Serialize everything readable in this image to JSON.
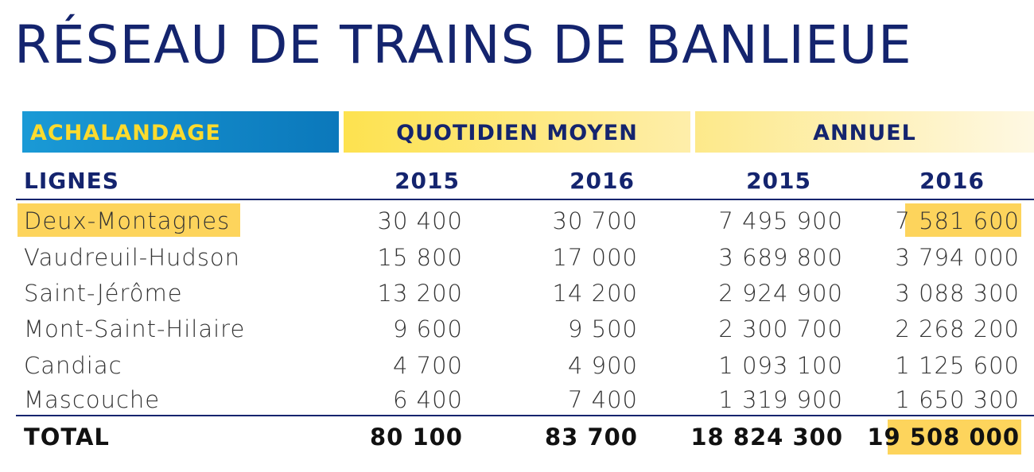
{
  "title": "RÉSEAU DE TRAINS DE BANLIEUE",
  "bands": {
    "achalandage": "ACHALANDAGE",
    "quotidien": "QUOTIDIEN MOYEN",
    "annuel": "ANNUEL"
  },
  "header": {
    "lignes": "LIGNES",
    "y1": "2015",
    "y2": "2016",
    "y3": "2015",
    "y4": "2016"
  },
  "rows": [
    {
      "name": "Deux-Montagnes",
      "q2015": "30 400",
      "q2016": "30 700",
      "a2015": "7 495 900",
      "a2016": "7 581 600"
    },
    {
      "name": "Vaudreuil-Hudson",
      "q2015": "15 800",
      "q2016": "17 000",
      "a2015": "3 689 800",
      "a2016": "3 794 000"
    },
    {
      "name": "Saint-Jérôme",
      "q2015": "13 200",
      "q2016": "14 200",
      "a2015": "2 924 900",
      "a2016": "3 088 300"
    },
    {
      "name": "Mont-Saint-Hilaire",
      "q2015": "9 600",
      "q2016": "9 500",
      "a2015": "2 300 700",
      "a2016": "2 268 200"
    },
    {
      "name": "Candiac",
      "q2015": "4 700",
      "q2016": "4 900",
      "a2015": "1 093 100",
      "a2016": "1 125 600"
    },
    {
      "name": "Mascouche",
      "q2015": "6 400",
      "q2016": "7 400",
      "a2015": "1 319 900",
      "a2016": "1 650 300"
    }
  ],
  "total": {
    "label": "TOTAL",
    "q2015": "80 100",
    "q2016": "83 700",
    "a2015": "18 824 300",
    "a2016": "19 508 000"
  },
  "colors": {
    "navy": "#14246e",
    "highlight": "#fdd45c",
    "blue_band": "#0b78bb",
    "yellow_band": "#fde24f"
  }
}
